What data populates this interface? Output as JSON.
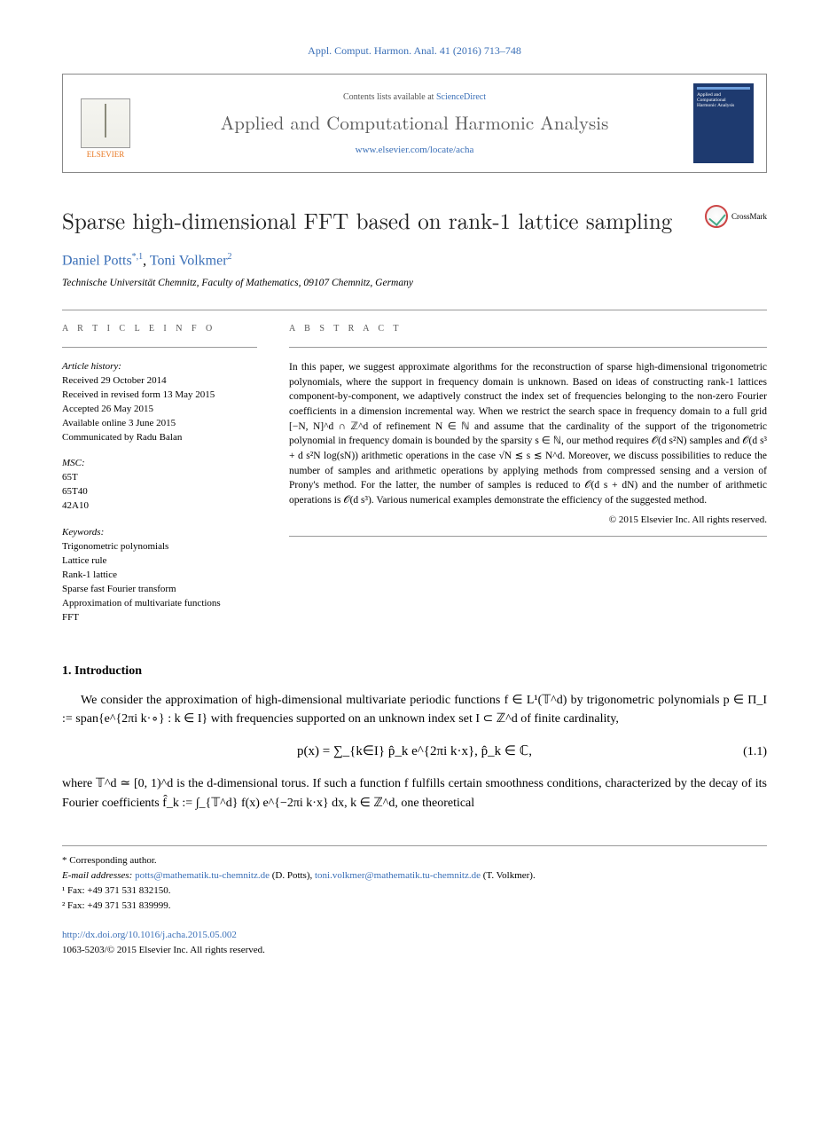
{
  "colors": {
    "link": "#3a6fb7",
    "text": "#000000",
    "muted": "#555555",
    "elsevier_orange": "#e87722",
    "cover_bg": "#1e3a6f"
  },
  "typography": {
    "body_font": "Georgia, Times New Roman, serif",
    "title_fontsize_pt": 19,
    "body_fontsize_pt": 11,
    "abstract_fontsize_pt": 9
  },
  "header": {
    "citation": "Appl. Comput. Harmon. Anal. 41 (2016) 713–748",
    "contents_prefix": "Contents lists available at ",
    "contents_link": "ScienceDirect",
    "journal_name": "Applied and Computational Harmonic Analysis",
    "journal_url": "www.elsevier.com/locate/acha",
    "publisher_logo_text": "ELSEVIER",
    "cover_text_lines": [
      "Applied and",
      "Computational",
      "Harmonic Analysis"
    ]
  },
  "paper": {
    "title": "Sparse high-dimensional FFT based on rank-1 lattice sampling",
    "crossmark_label": "CrossMark",
    "authors_html_parts": {
      "a1_name": "Daniel Potts",
      "a1_marks": "*,1",
      "sep": ", ",
      "a2_name": "Toni Volkmer",
      "a2_marks": "2"
    },
    "affiliation": "Technische Universität Chemnitz, Faculty of Mathematics, 09107 Chemnitz, Germany"
  },
  "info": {
    "heading": "A R T I C L E   I N F O",
    "history_label": "Article history:",
    "history": [
      "Received 29 October 2014",
      "Received in revised form 13 May 2015",
      "Accepted 26 May 2015",
      "Available online 3 June 2015",
      "Communicated by Radu Balan"
    ],
    "msc_label": "MSC:",
    "msc": [
      "65T",
      "65T40",
      "42A10"
    ],
    "keywords_label": "Keywords:",
    "keywords": [
      "Trigonometric polynomials",
      "Lattice rule",
      "Rank-1 lattice",
      "Sparse fast Fourier transform",
      "Approximation of multivariate functions",
      "FFT"
    ]
  },
  "abstract": {
    "heading": "A B S T R A C T",
    "text": "In this paper, we suggest approximate algorithms for the reconstruction of sparse high-dimensional trigonometric polynomials, where the support in frequency domain is unknown. Based on ideas of constructing rank-1 lattices component-by-component, we adaptively construct the index set of frequencies belonging to the non-zero Fourier coefficients in a dimension incremental way. When we restrict the search space in frequency domain to a full grid [−N, N]^d ∩ ℤ^d of refinement N ∈ ℕ and assume that the cardinality of the support of the trigonometric polynomial in frequency domain is bounded by the sparsity s ∈ ℕ, our method requires 𝒪(d s²N) samples and 𝒪(d s³ + d s²N log(sN)) arithmetic operations in the case √N ≲ s ≲ N^d. Moreover, we discuss possibilities to reduce the number of samples and arithmetic operations by applying methods from compressed sensing and a version of Prony's method. For the latter, the number of samples is reduced to 𝒪(d s + dN) and the number of arithmetic operations is 𝒪(d s³). Various numerical examples demonstrate the efficiency of the suggested method.",
    "copyright": "© 2015 Elsevier Inc. All rights reserved."
  },
  "section1": {
    "heading": "1. Introduction",
    "para1": "We consider the approximation of high-dimensional multivariate periodic functions f ∈ L¹(𝕋^d) by trigonometric polynomials p ∈ Π_I := span{e^{2πi k·∘} : k ∈ I} with frequencies supported on an unknown index set I ⊂ ℤ^d of finite cardinality,",
    "equation": "p(x) = ∑_{k∈I} p̂_k e^{2πi k·x},   p̂_k ∈ ℂ,",
    "equation_number": "(1.1)",
    "para2": "where 𝕋^d ≃ [0, 1)^d is the d-dimensional torus. If such a function f fulfills certain smoothness conditions, characterized by the decay of its Fourier coefficients f̂_k := ∫_{𝕋^d} f(x) e^{−2πi k·x} dx, k ∈ ℤ^d, one theoretical"
  },
  "footnotes": {
    "corr": "* Corresponding author.",
    "email_label": "E-mail addresses:",
    "email1": "potts@mathematik.tu-chemnitz.de",
    "email1_who": " (D. Potts), ",
    "email2": "toni.volkmer@mathematik.tu-chemnitz.de",
    "email2_who": " (T. Volkmer).",
    "fn1": "¹ Fax: +49 371 531 832150.",
    "fn2": "² Fax: +49 371 531 839999.",
    "doi": "http://dx.doi.org/10.1016/j.acha.2015.05.002",
    "issn_line": "1063-5203/© 2015 Elsevier Inc. All rights reserved."
  }
}
